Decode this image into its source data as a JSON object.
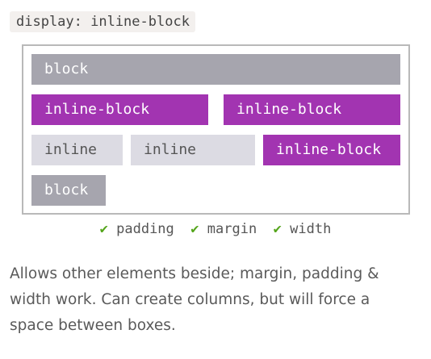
{
  "code_label": "display: inline-block",
  "boxes": {
    "row1_block": "block",
    "row2_ib1": "inline-block",
    "row2_ib2": "inline-block",
    "row3_inline1": "inline",
    "row3_inline2": "inline",
    "row3_ib": "inline-block",
    "row4_block": "block"
  },
  "features": {
    "check": "✔",
    "f1": "padding",
    "f2": "margin",
    "f3": "width"
  },
  "description": "Allows other elements beside; margin, padding & width work. Can create columns, but will force a space between boxes.",
  "colors": {
    "block": "#a6a5ae",
    "inline_block": "#a234b1",
    "inline": "#dcdbe3",
    "check": "#54a51b"
  }
}
